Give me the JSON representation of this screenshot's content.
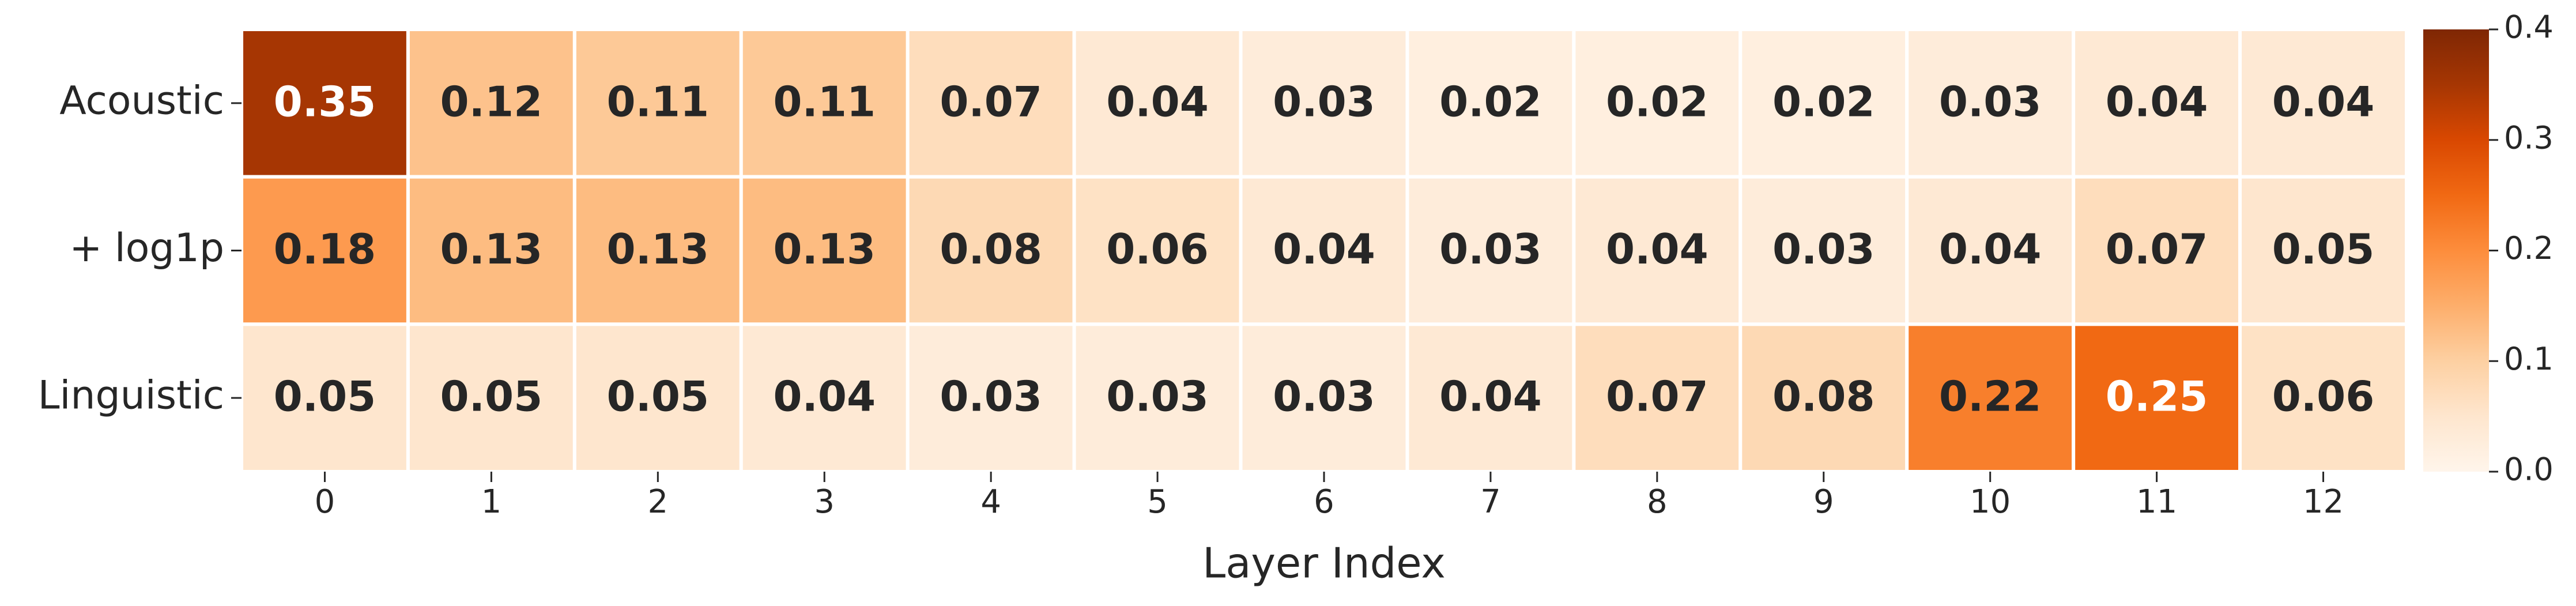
{
  "chart_data": {
    "type": "heatmap",
    "x_label": "Layer Index",
    "rows": [
      "Acoustic",
      "+ log1p",
      "Linguistic"
    ],
    "columns": [
      "0",
      "1",
      "2",
      "3",
      "4",
      "5",
      "6",
      "7",
      "8",
      "9",
      "10",
      "11",
      "12"
    ],
    "values": [
      [
        0.35,
        0.12,
        0.11,
        0.11,
        0.07,
        0.04,
        0.03,
        0.02,
        0.02,
        0.02,
        0.03,
        0.04,
        0.04
      ],
      [
        0.18,
        0.13,
        0.13,
        0.13,
        0.08,
        0.06,
        0.04,
        0.03,
        0.04,
        0.03,
        0.04,
        0.07,
        0.05
      ],
      [
        0.05,
        0.05,
        0.05,
        0.04,
        0.03,
        0.03,
        0.03,
        0.04,
        0.07,
        0.08,
        0.22,
        0.25,
        0.06
      ]
    ],
    "colormap": "Oranges",
    "clim": [
      0,
      0.4
    ],
    "cticks": [
      {
        "value": 0,
        "label": "0.0"
      },
      0.1,
      0.2,
      0.3,
      0.4
    ]
  }
}
